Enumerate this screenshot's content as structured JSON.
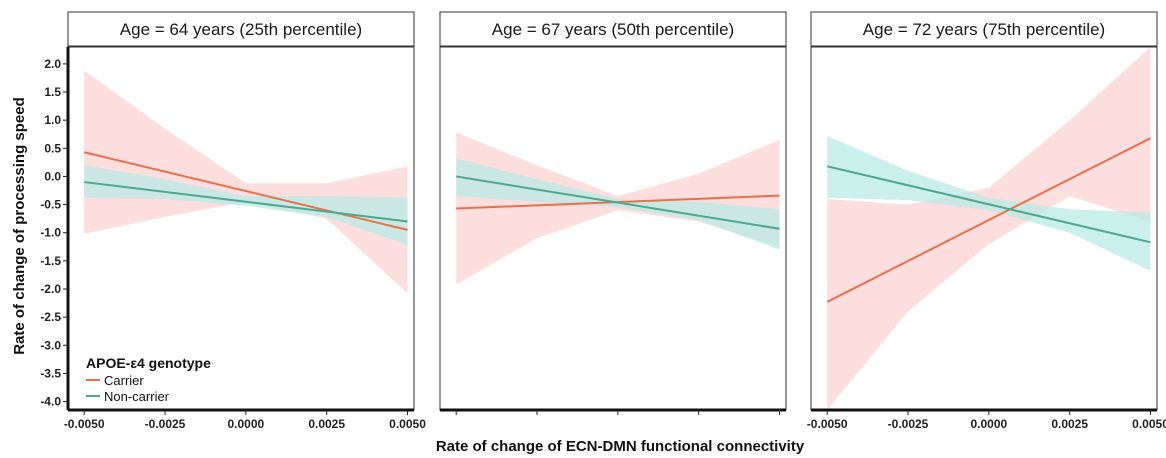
{
  "chart_data": {
    "type": "line",
    "xlabel": "Rate of change of ECN-DMN functional connectivity",
    "ylabel": "Rate of change of processing speed",
    "xlim": [
      -0.0055,
      0.0052
    ],
    "ylim": [
      -4.15,
      2.3
    ],
    "x_ticks": [
      -0.005,
      -0.0025,
      0.0,
      0.0025,
      0.005
    ],
    "x_tick_labels": [
      "-0.0050",
      "-0.0025",
      "0.0000",
      "0.0025",
      "0.0050"
    ],
    "y_ticks": [
      2.0,
      1.5,
      1.0,
      0.5,
      0.0,
      -0.5,
      -1.0,
      -1.5,
      -2.0,
      -2.5,
      -3.0,
      -3.5,
      -4.0
    ],
    "y_tick_labels": [
      "2.0",
      "1.5",
      "1.0",
      "0.5",
      "0.0",
      "-0.5",
      "-1.0",
      "-1.5",
      "-2.0",
      "-2.5",
      "-3.0",
      "-3.5",
      "-4.0"
    ],
    "grid": false,
    "legend": {
      "title": "APOE-ε4 genotype",
      "placement": "bottom-left",
      "entries": [
        {
          "label": "Carrier",
          "color": "#e8714a"
        },
        {
          "label": "Non-carrier",
          "color": "#4aa88c"
        }
      ]
    },
    "colors": {
      "carrier_line": "#e8714a",
      "carrier_band": "#fbd3d3",
      "noncarrier_line": "#4aa88c",
      "noncarrier_band": "#b9e9e4",
      "overlap_band": "#e6e6ea"
    },
    "panels": [
      {
        "strip": "Age = 64 years (25th percentile)",
        "show_x_tick_labels": true,
        "series": [
          {
            "name": "Carrier",
            "x": [
              -0.005,
              0.005
            ],
            "y": [
              0.43,
              -0.95
            ],
            "band_x": [
              -0.005,
              -0.0025,
              0.0,
              0.0025,
              0.005
            ],
            "band_lower": [
              -1.02,
              -0.72,
              -0.45,
              -0.75,
              -2.08
            ],
            "band_upper": [
              1.88,
              0.85,
              -0.12,
              -0.12,
              0.18
            ]
          },
          {
            "name": "Non-carrier",
            "x": [
              -0.005,
              0.005
            ],
            "y": [
              -0.1,
              -0.8
            ],
            "band_x": [
              -0.005,
              -0.0025,
              0.0,
              0.0025,
              0.005
            ],
            "band_lower": [
              -0.38,
              -0.4,
              -0.52,
              -0.72,
              -1.22
            ],
            "band_upper": [
              0.2,
              -0.05,
              -0.35,
              -0.35,
              -0.38
            ]
          }
        ]
      },
      {
        "strip": "Age = 67 years (50th percentile)",
        "show_x_tick_labels": false,
        "series": [
          {
            "name": "Carrier",
            "x": [
              -0.005,
              0.005
            ],
            "y": [
              -0.57,
              -0.34
            ],
            "band_x": [
              -0.005,
              -0.0025,
              0.0,
              0.0025,
              0.005
            ],
            "band_lower": [
              -1.92,
              -1.1,
              -0.6,
              -0.8,
              -1.25
            ],
            "band_upper": [
              0.78,
              0.2,
              -0.35,
              0.05,
              0.65
            ]
          },
          {
            "name": "Non-carrier",
            "x": [
              -0.005,
              0.005
            ],
            "y": [
              0.0,
              -0.93
            ],
            "band_x": [
              -0.005,
              -0.0025,
              0.0,
              0.0025,
              0.005
            ],
            "band_lower": [
              -0.35,
              -0.45,
              -0.55,
              -0.78,
              -1.3
            ],
            "band_upper": [
              0.32,
              -0.05,
              -0.4,
              -0.45,
              -0.58
            ]
          }
        ]
      },
      {
        "strip": "Age = 72 years (75th percentile)",
        "show_x_tick_labels": true,
        "series": [
          {
            "name": "Carrier",
            "x": [
              -0.005,
              0.005
            ],
            "y": [
              -2.23,
              0.68
            ],
            "band_x": [
              -0.005,
              -0.0025,
              0.0,
              0.0025,
              0.005
            ],
            "band_lower": [
              -4.15,
              -2.4,
              -1.2,
              -0.35,
              -0.8
            ],
            "band_upper": [
              -0.4,
              -0.5,
              -0.2,
              1.0,
              2.3
            ]
          },
          {
            "name": "Non-carrier",
            "x": [
              -0.005,
              0.005
            ],
            "y": [
              0.18,
              -1.17
            ],
            "band_x": [
              -0.005,
              -0.0025,
              0.0,
              0.0025,
              0.005
            ],
            "band_lower": [
              -0.38,
              -0.42,
              -0.6,
              -1.0,
              -1.68
            ],
            "band_upper": [
              0.72,
              0.1,
              -0.38,
              -0.58,
              -0.65
            ]
          }
        ]
      }
    ]
  }
}
